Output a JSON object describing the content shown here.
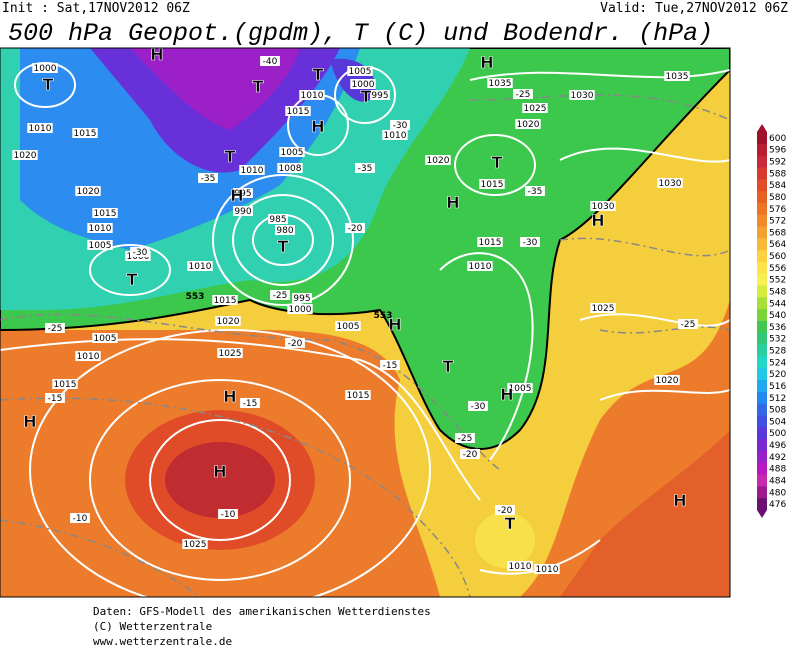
{
  "header": {
    "init": "Init : Sat,17NOV2012 06Z",
    "valid": "Valid: Tue,27NOV2012 06Z",
    "title": "500 hPa Geopot.(gpdm), T (C) und Bodendr. (hPa)"
  },
  "colorbar": {
    "ticks": [
      600,
      596,
      592,
      588,
      584,
      580,
      576,
      572,
      568,
      564,
      560,
      556,
      552,
      548,
      544,
      540,
      536,
      532,
      528,
      524,
      520,
      516,
      512,
      508,
      504,
      500,
      496,
      492,
      488,
      484,
      480,
      476
    ],
    "colors": [
      "#a0102a",
      "#b81c30",
      "#c8283a",
      "#d83a30",
      "#e04c28",
      "#e86020",
      "#ec7424",
      "#f08a2a",
      "#f4a030",
      "#f8b838",
      "#fcd040",
      "#fce448",
      "#f8f050",
      "#d8ec40",
      "#a8e038",
      "#78d438",
      "#40c850",
      "#30c878",
      "#28d0a0",
      "#20d8c8",
      "#20c8e8",
      "#20a8f0",
      "#2088f0",
      "#3068e8",
      "#4050e0",
      "#5838d8",
      "#7828d0",
      "#9820c8",
      "#b818c0",
      "#c828b0",
      "#a01890",
      "#6a1070"
    ]
  },
  "map": {
    "isobar_labels": [
      "1000",
      "1010",
      "1015",
      "1020",
      "1020",
      "1015",
      "1010",
      "1005",
      "1000",
      "1010",
      "1015",
      "1020",
      "1005",
      "1010",
      "1015",
      "1025",
      "1025",
      "1005",
      "1000",
      "995",
      "1010",
      "1015",
      "1010",
      "1005",
      "1010",
      "1008",
      "995",
      "990",
      "985",
      "980",
      "995",
      "1000",
      "1005",
      "1020",
      "1015",
      "1010",
      "1015",
      "1035",
      "1025",
      "1020",
      "1030",
      "1035",
      "1030",
      "1030",
      "1025",
      "1020",
      "1005",
      "1015",
      "1010",
      "1010"
    ],
    "temperature_labels": [
      "-40",
      "-35",
      "-30",
      "-25",
      "-25",
      "-20",
      "-20",
      "-15",
      "-15",
      "-30",
      "-35",
      "-30",
      "-25",
      "-20",
      "-20",
      "-25",
      "-10",
      "-10",
      "-15",
      "-25",
      "-30",
      "-35"
    ],
    "contour_labels": [
      "553",
      "553"
    ],
    "highs": [
      "H",
      "H",
      "H",
      "H",
      "H",
      "H",
      "H",
      "H",
      "H",
      "H",
      "H",
      "H"
    ],
    "lows": [
      "T",
      "T",
      "T",
      "T",
      "T",
      "T",
      "T",
      "T",
      "T",
      "T"
    ]
  },
  "footer": {
    "line1": "Daten: GFS-Modell des amerikanischen Wetterdienstes",
    "line2": "(C) Wetterzentrale",
    "line3": "www.wetterzentrale.de"
  }
}
